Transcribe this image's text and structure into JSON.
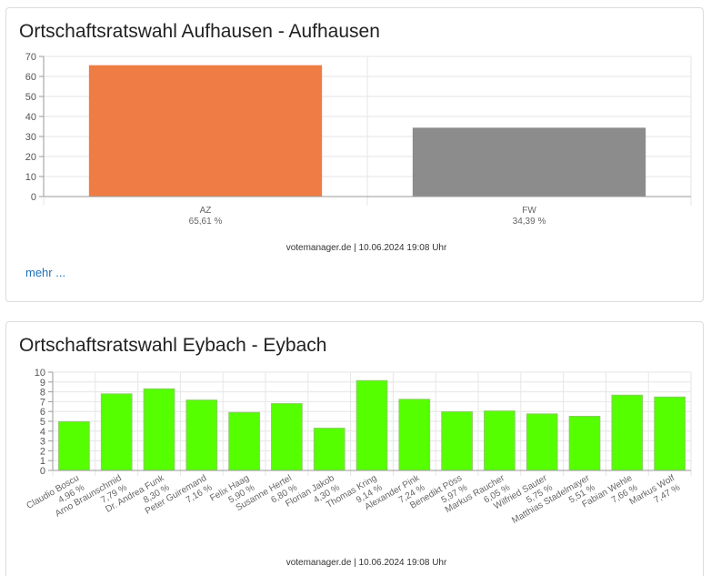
{
  "charts": [
    {
      "title": "Ortschaftsratswahl Aufhausen - Aufhausen",
      "footer": "votemanager.de | 10.06.2024 19:08 Uhr",
      "more_link": "mehr ...",
      "chart_data": {
        "type": "bar",
        "categories": [
          "AZ",
          "FW"
        ],
        "value_labels": [
          "65,61 %",
          "34,39 %"
        ],
        "values": [
          65.61,
          34.39
        ],
        "colors": [
          "#f07c45",
          "#8c8c8c"
        ],
        "ylim": [
          0,
          70
        ],
        "yticks": [
          0,
          10,
          20,
          30,
          40,
          50,
          60,
          70
        ],
        "grid": true,
        "legend": "none"
      }
    },
    {
      "title": "Ortschaftsratswahl Eybach - Eybach",
      "footer": "votemanager.de | 10.06.2024 19:08 Uhr",
      "chart_data": {
        "type": "bar",
        "categories": [
          "Claudio Boscu",
          "Arno Braunschmid",
          "Dr. Andrea Funk",
          "Peter Guiremand",
          "Felix Haag",
          "Susanne Hertel",
          "Florian Jakob",
          "Thomas Kring",
          "Alexander Pink",
          "Benedikt Pöss",
          "Markus Raucher",
          "Wilfried Sauter",
          "Matthias Stadelmayer",
          "Fabian Wehle",
          "Markus Wolf"
        ],
        "value_labels": [
          "4,96 %",
          "7,79 %",
          "8,30 %",
          "7,16 %",
          "5,90 %",
          "6,80 %",
          "4,30 %",
          "9,14 %",
          "7,24 %",
          "5,97 %",
          "6,05 %",
          "5,75 %",
          "5,51 %",
          "7,66 %",
          "7,47 %"
        ],
        "values": [
          4.96,
          7.79,
          8.3,
          7.16,
          5.9,
          6.8,
          4.3,
          9.14,
          7.24,
          5.97,
          6.05,
          5.75,
          5.51,
          7.66,
          7.47
        ],
        "colors": [
          "#55ff00"
        ],
        "ylim": [
          0,
          10
        ],
        "yticks": [
          0,
          1,
          2,
          3,
          4,
          5,
          6,
          7,
          8,
          9,
          10
        ],
        "grid": true,
        "legend": "none"
      }
    }
  ]
}
